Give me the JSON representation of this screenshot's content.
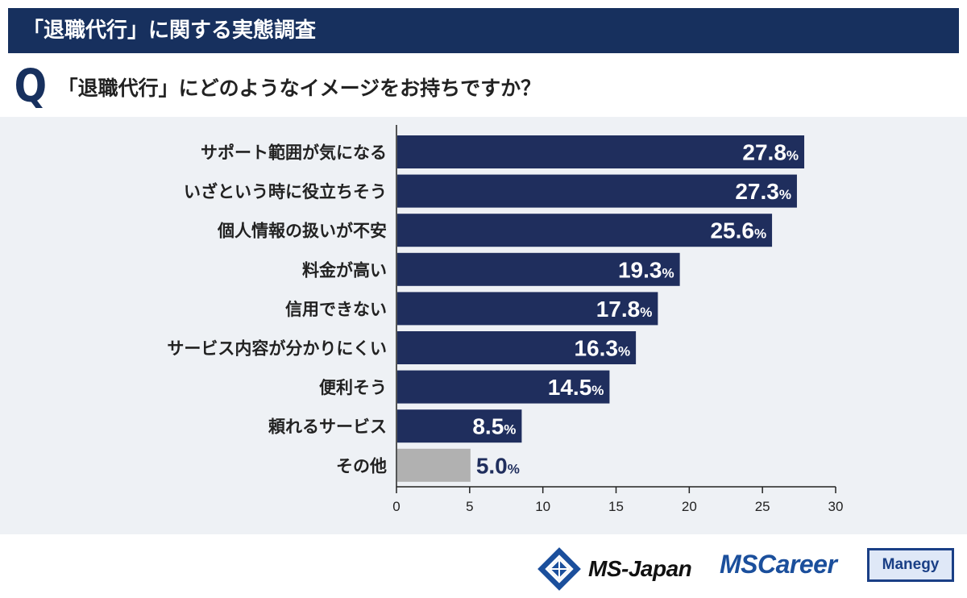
{
  "header": {
    "title": "「退職代行」に関する実態調査"
  },
  "question": {
    "mark": "Q",
    "text": "「退職代行」にどのようなイメージをお持ちですか？"
  },
  "chart_data": {
    "type": "bar",
    "orientation": "horizontal",
    "categories": [
      "サポート範囲が気になる",
      "いざという時に役立ちそう",
      "個人情報の扱いが不安",
      "料金が高い",
      "信用できない",
      "サービス内容が分かりにくい",
      "便利そう",
      "頼れるサービス",
      "その他"
    ],
    "values": [
      27.8,
      27.3,
      25.6,
      19.3,
      17.8,
      16.3,
      14.5,
      8.5,
      5.0
    ],
    "value_labels": [
      "27.8",
      "27.3",
      "25.6",
      "19.3",
      "17.8",
      "16.3",
      "14.5",
      "8.5",
      "5.0"
    ],
    "unit": "%",
    "xlim": [
      0,
      30
    ],
    "xticks": [
      "0",
      "5",
      "10",
      "15",
      "20",
      "25",
      "30"
    ],
    "xtick_values": [
      0,
      5,
      10,
      15,
      20,
      25,
      30
    ],
    "colors": {
      "bar": "#1f2e5d",
      "other": "#b1b1b1",
      "label_inside": "#ffffff",
      "label_outside": "#1f2e5d",
      "axis": "#222222"
    }
  },
  "footer": {
    "ms_japan": "MS-Japan",
    "ms_career": "MSCareer",
    "manegy": "Manegy"
  }
}
